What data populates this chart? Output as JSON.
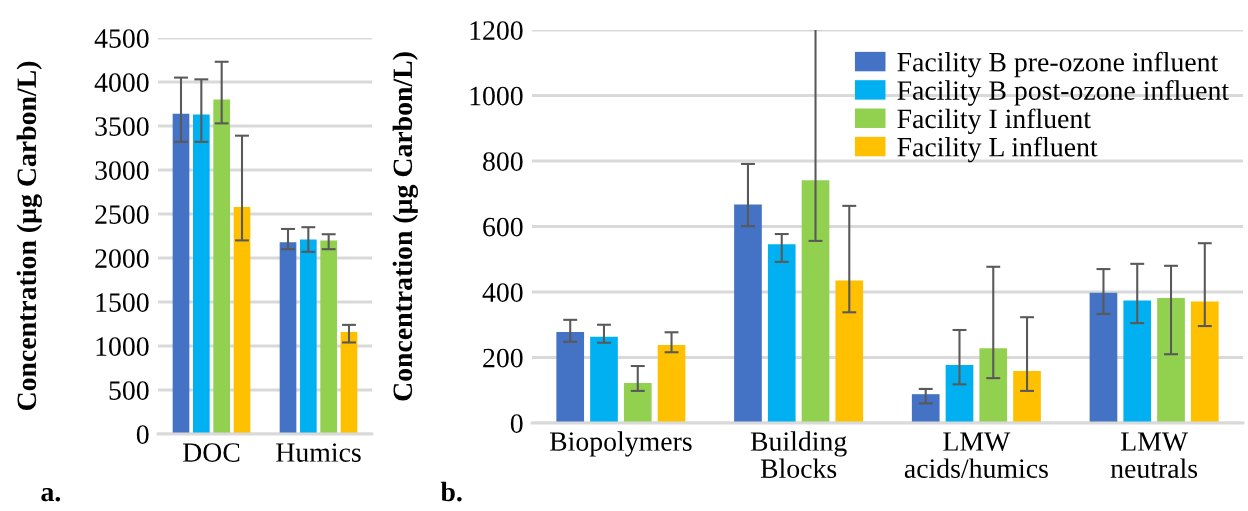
{
  "chart_data": [
    {
      "type": "bar",
      "ylabel": "Concentration (µg Carbon/L)",
      "categories": [
        "DOC",
        "Humics"
      ],
      "ylim": [
        0,
        4500
      ],
      "yticks": [
        0,
        500,
        1000,
        1500,
        2000,
        2500,
        3000,
        3500,
        4000,
        4500
      ],
      "grid": "y",
      "legend": false,
      "annotations": [
        "a."
      ],
      "series": [
        {
          "color": "#4472c4",
          "values": [
            3640,
            2180
          ],
          "errors": [
            [
              3320,
              4050
            ],
            [
              2100,
              2330
            ]
          ]
        },
        {
          "color": "#00b0f0",
          "values": [
            3630,
            2210
          ],
          "errors": [
            [
              3320,
              4030
            ],
            [
              2070,
              2350
            ]
          ]
        },
        {
          "color": "#92d050",
          "values": [
            3800,
            2200
          ],
          "errors": [
            [
              3530,
              4230
            ],
            [
              2100,
              2270
            ]
          ]
        },
        {
          "color": "#ffc000",
          "values": [
            2580,
            1160
          ],
          "errors": [
            [
              2200,
              3390
            ],
            [
              1040,
              1240
            ]
          ]
        }
      ]
    },
    {
      "type": "bar",
      "ylabel": "Concentration (µg Carbon/L)",
      "categories": [
        "Biopolymers",
        "Building\nBlocks",
        "LMW\nacids/humics",
        "LMW\nneutrals"
      ],
      "ylim": [
        0,
        1200
      ],
      "yticks": [
        0,
        200,
        400,
        600,
        800,
        1000,
        1200
      ],
      "grid": "y",
      "legend": "top right",
      "annotations": [
        "b."
      ],
      "series": [
        {
          "name": "Facility B pre-ozone influent",
          "color": "#4472c4",
          "values": [
            278,
            667,
            88,
            398
          ],
          "errors": [
            [
              248,
              315
            ],
            [
              601,
              791
            ],
            [
              60,
              104
            ],
            [
              333,
              470
            ]
          ]
        },
        {
          "name": "Facility B post-ozone influent",
          "color": "#00b0f0",
          "values": [
            263,
            546,
            177,
            374
          ],
          "errors": [
            [
              245,
              300
            ],
            [
              492,
              577
            ],
            [
              118,
              284
            ],
            [
              305,
              486
            ]
          ]
        },
        {
          "name": "Facility I influent",
          "color": "#92d050",
          "values": [
            122,
            741,
            228,
            382
          ],
          "errors": [
            [
              98,
              174
            ],
            [
              556,
              1203
            ],
            [
              137,
              477
            ],
            [
              210,
              480
            ]
          ]
        },
        {
          "name": "Facility L influent",
          "color": "#ffc000",
          "values": [
            238,
            435,
            159,
            371
          ],
          "errors": [
            [
              216,
              277
            ],
            [
              338,
              663
            ],
            [
              98,
              323
            ],
            [
              296,
              549
            ]
          ]
        }
      ]
    }
  ]
}
